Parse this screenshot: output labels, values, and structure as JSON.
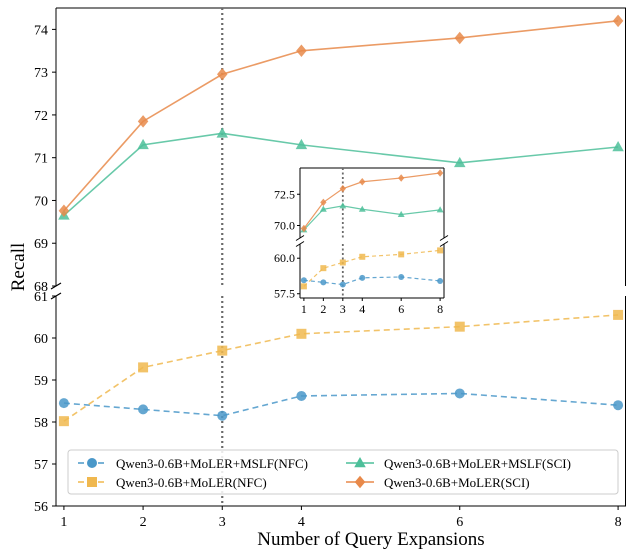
{
  "chart_data": {
    "type": "line",
    "xlabel": "Number of Query Expansions",
    "ylabel": "Recall",
    "x": [
      1,
      2,
      3,
      4,
      6,
      8
    ],
    "x_ticks": [
      "1",
      "2",
      "3",
      "4",
      "6",
      "8"
    ],
    "vline_x": 3,
    "broken_y_axis": true,
    "upper_panel": {
      "ylim": [
        68,
        74.5
      ],
      "y_ticks": [
        "68",
        "69",
        "70",
        "71",
        "72",
        "73",
        "74"
      ]
    },
    "lower_panel": {
      "ylim": [
        56,
        61
      ],
      "y_ticks": [
        "56",
        "57",
        "58",
        "59",
        "60",
        "61"
      ]
    },
    "series": [
      {
        "name": "Qwen3-0.6B+MoLER+MSLF(NFC)",
        "values": [
          58.45,
          58.3,
          58.15,
          58.62,
          58.68,
          58.4
        ],
        "color": "#4a98c9",
        "style": "dashed",
        "marker": "circle",
        "panel": "lower"
      },
      {
        "name": "Qwen3-0.6B+MoLER(NFC)",
        "values": [
          58.02,
          59.3,
          59.7,
          60.1,
          60.27,
          60.55
        ],
        "color": "#f0b84f",
        "style": "dashed",
        "marker": "square",
        "panel": "lower"
      },
      {
        "name": "Qwen3-0.6B+MoLER+MSLF(SCI)",
        "values": [
          69.65,
          71.3,
          71.57,
          71.3,
          70.88,
          71.25
        ],
        "color": "#4dbf9a",
        "style": "solid",
        "marker": "triangle",
        "panel": "upper"
      },
      {
        "name": "Qwen3-0.6B+MoLER(SCI)",
        "values": [
          69.76,
          71.85,
          72.95,
          73.5,
          73.8,
          74.2
        ],
        "color": "#e8894a",
        "style": "solid",
        "marker": "diamond",
        "panel": "upper"
      }
    ],
    "legend": {
      "placement": "lower-center",
      "columns": 2
    },
    "inset": {
      "upper_ticks": [
        "70.0",
        "72.5"
      ],
      "lower_ticks": [
        "57.5",
        "60.0"
      ],
      "x_ticks": [
        "1",
        "2",
        "3",
        "4",
        "6",
        "8"
      ]
    }
  }
}
